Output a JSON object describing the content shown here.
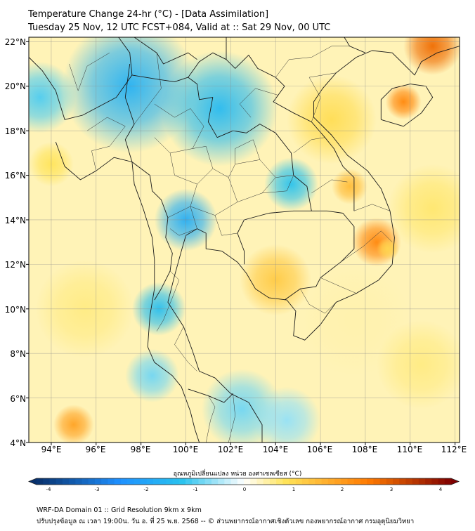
{
  "title": {
    "line1": "Temperature Change 24-hr (°C) - [Data Assimilation]",
    "line2": "Tuesday 25 Nov, 12 UTC FCST+084, Valid at :: Sat 29 Nov, 00 UTC"
  },
  "axes": {
    "lat_labels": [
      "22°N",
      "20°N",
      "18°N",
      "16°N",
      "14°N",
      "12°N",
      "10°N",
      "8°N",
      "6°N",
      "4°N"
    ],
    "lon_labels": [
      "94°E",
      "96°E",
      "98°E",
      "100°E",
      "102°E",
      "104°E",
      "106°E",
      "108°E",
      "110°E",
      "112°E"
    ],
    "lat_range": [
      4,
      22.2
    ],
    "lon_range": [
      93,
      112.2
    ]
  },
  "colorbar": {
    "label": "อุณหภูมิเปลี่ยนแปลง หน่วย องศาเซลเซียส (°C)",
    "min": -4,
    "max": 4,
    "ticks": [
      "-4",
      "-3",
      "-2",
      "-1",
      "0",
      "1",
      "2",
      "3",
      "4"
    ]
  },
  "footer": {
    "line1": "WRF-DA Domain 01 :: Grid Resolution 9km x 9km",
    "line2": "ปรับปรุงข้อมูล ณ เวลา 19:00น. วัน อ. ที่ 25 พ.ย. 2568 -- © ส่วนพยากรณ์อากาศเชิงตัวเลข กองพยากรณ์อากาศ กรมอุตุนิยมวิทยา"
  },
  "colors": {
    "cold_extreme": "#08306b",
    "cold": "#1e90ff",
    "cool": "#29c2ee",
    "neutral": "#ffffff",
    "warm": "#ffe45a",
    "hot": "#ff7a00",
    "hot_extreme": "#7f0000"
  },
  "field": {
    "note": "temperature change anomalies (lon, lat, degC, spread in deg)",
    "anomalies": [
      {
        "lon": 97.5,
        "lat": 20.0,
        "value": -1.6,
        "spread": 3.0
      },
      {
        "lon": 101.5,
        "lat": 19.0,
        "value": -1.4,
        "spread": 2.6
      },
      {
        "lon": 100.0,
        "lat": 14.0,
        "value": -1.7,
        "spread": 1.4
      },
      {
        "lon": 104.7,
        "lat": 15.6,
        "value": -1.2,
        "spread": 1.2
      },
      {
        "lon": 93.5,
        "lat": 19.5,
        "value": -1.0,
        "spread": 1.6
      },
      {
        "lon": 98.8,
        "lat": 10.0,
        "value": -1.3,
        "spread": 1.2
      },
      {
        "lon": 98.5,
        "lat": 7.0,
        "value": -0.8,
        "spread": 1.2
      },
      {
        "lon": 102.5,
        "lat": 5.5,
        "value": -0.8,
        "spread": 1.8
      },
      {
        "lon": 104.5,
        "lat": 5.0,
        "value": -0.6,
        "spread": 1.5
      },
      {
        "lon": 107.5,
        "lat": 9.5,
        "value": 0.4,
        "spread": 2.5
      },
      {
        "lon": 108.5,
        "lat": 13.0,
        "value": 2.2,
        "spread": 1.1
      },
      {
        "lon": 109.0,
        "lat": 12.7,
        "value": 1.0,
        "spread": 0.5
      },
      {
        "lon": 107.3,
        "lat": 15.5,
        "value": 1.4,
        "spread": 0.8
      },
      {
        "lon": 109.7,
        "lat": 19.3,
        "value": 2.2,
        "spread": 0.8
      },
      {
        "lon": 111.0,
        "lat": 21.8,
        "value": 2.6,
        "spread": 1.3
      },
      {
        "lon": 104.0,
        "lat": 11.3,
        "value": 1.2,
        "spread": 1.6
      },
      {
        "lon": 106.5,
        "lat": 18.5,
        "value": 0.9,
        "spread": 2.0
      },
      {
        "lon": 95.0,
        "lat": 4.8,
        "value": 1.8,
        "spread": 0.9
      },
      {
        "lon": 94.0,
        "lat": 16.5,
        "value": 0.8,
        "spread": 1.0
      },
      {
        "lon": 95.5,
        "lat": 10.0,
        "value": 0.6,
        "spread": 2.2
      },
      {
        "lon": 110.5,
        "lat": 7.5,
        "value": 0.6,
        "spread": 2.0
      },
      {
        "lon": 111.0,
        "lat": 14.5,
        "value": 0.7,
        "spread": 2.0
      }
    ],
    "background": 0.35
  },
  "geography": {
    "coastline": [
      [
        [
          97.0,
          22.2
        ],
        [
          97.5,
          21.5
        ],
        [
          97.6,
          20.5
        ],
        [
          96.9,
          19.5
        ],
        [
          95.4,
          18.7
        ],
        [
          94.6,
          18.5
        ],
        [
          94.2,
          19.8
        ],
        [
          93.6,
          20.7
        ],
        [
          93.0,
          21.3
        ]
      ],
      [
        [
          94.2,
          17.5
        ],
        [
          94.6,
          16.4
        ],
        [
          95.3,
          15.8
        ],
        [
          96.0,
          16.2
        ],
        [
          96.8,
          16.8
        ],
        [
          97.6,
          16.6
        ],
        [
          97.7,
          15.6
        ],
        [
          98.1,
          14.5
        ],
        [
          98.5,
          13.2
        ],
        [
          98.6,
          12.2
        ],
        [
          98.6,
          10.9
        ],
        [
          98.4,
          9.7
        ],
        [
          98.3,
          8.3
        ],
        [
          98.6,
          7.6
        ],
        [
          99.4,
          7.0
        ],
        [
          99.8,
          6.5
        ],
        [
          100.2,
          5.4
        ],
        [
          100.4,
          4.6
        ],
        [
          100.6,
          4.0
        ]
      ],
      [
        [
          103.4,
          4.0
        ],
        [
          103.4,
          4.8
        ],
        [
          102.8,
          5.8
        ],
        [
          102.0,
          6.2
        ],
        [
          101.3,
          6.9
        ],
        [
          100.6,
          7.2
        ],
        [
          100.3,
          8.1
        ],
        [
          99.9,
          9.2
        ],
        [
          99.2,
          10.3
        ],
        [
          99.5,
          11.5
        ],
        [
          99.8,
          12.6
        ],
        [
          100.0,
          13.3
        ],
        [
          100.5,
          13.6
        ],
        [
          100.9,
          13.4
        ],
        [
          100.9,
          12.7
        ],
        [
          101.6,
          12.6
        ],
        [
          102.3,
          12.1
        ],
        [
          102.7,
          11.6
        ],
        [
          103.1,
          10.9
        ],
        [
          103.7,
          10.5
        ],
        [
          104.5,
          10.4
        ],
        [
          104.9,
          9.9
        ],
        [
          104.8,
          8.8
        ],
        [
          105.3,
          8.6
        ],
        [
          106.0,
          9.3
        ],
        [
          106.7,
          10.3
        ],
        [
          107.6,
          10.7
        ],
        [
          108.6,
          11.3
        ],
        [
          109.2,
          12.0
        ],
        [
          109.3,
          13.2
        ],
        [
          109.1,
          14.4
        ],
        [
          108.7,
          15.4
        ],
        [
          108.1,
          16.2
        ],
        [
          107.2,
          16.9
        ],
        [
          106.5,
          17.8
        ],
        [
          105.7,
          18.6
        ],
        [
          105.7,
          19.3
        ],
        [
          106.1,
          19.9
        ],
        [
          106.7,
          20.6
        ],
        [
          107.6,
          21.3
        ],
        [
          108.3,
          21.6
        ],
        [
          109.2,
          21.5
        ],
        [
          109.7,
          21.0
        ],
        [
          110.2,
          20.5
        ],
        [
          110.5,
          21.1
        ],
        [
          111.2,
          21.5
        ],
        [
          112.2,
          21.8
        ]
      ],
      [
        [
          108.7,
          18.5
        ],
        [
          108.7,
          19.4
        ],
        [
          109.2,
          19.9
        ],
        [
          110.0,
          20.1
        ],
        [
          110.7,
          20.0
        ],
        [
          111.0,
          19.5
        ],
        [
          110.5,
          18.8
        ],
        [
          109.7,
          18.2
        ],
        [
          108.7,
          18.5
        ]
      ],
      [
        [
          116.0,
          7.0
        ],
        [
          115.0,
          5.0
        ],
        [
          113.2,
          4.0
        ]
      ]
    ],
    "borders": [
      [
        [
          97.6,
          20.5
        ],
        [
          98.8,
          20.3
        ],
        [
          99.5,
          20.2
        ],
        [
          100.1,
          20.4
        ],
        [
          100.5,
          20.1
        ],
        [
          100.6,
          19.4
        ],
        [
          101.2,
          19.5
        ],
        [
          101.0,
          18.4
        ],
        [
          101.4,
          17.7
        ],
        [
          102.1,
          18.0
        ],
        [
          102.7,
          17.9
        ],
        [
          103.3,
          18.3
        ],
        [
          104.0,
          17.9
        ],
        [
          104.7,
          17.0
        ],
        [
          104.8,
          16.0
        ],
        [
          105.4,
          15.5
        ],
        [
          105.6,
          14.4
        ],
        [
          104.8,
          14.4
        ],
        [
          103.7,
          14.3
        ],
        [
          102.6,
          14.0
        ],
        [
          102.3,
          13.4
        ],
        [
          102.6,
          12.6
        ],
        [
          102.6,
          12.0
        ]
      ],
      [
        [
          97.6,
          16.6
        ],
        [
          98.4,
          16.0
        ],
        [
          98.5,
          15.3
        ],
        [
          98.9,
          14.9
        ],
        [
          99.2,
          14.1
        ],
        [
          99.1,
          13.2
        ],
        [
          99.4,
          12.5
        ],
        [
          99.3,
          11.7
        ],
        [
          98.9,
          10.9
        ],
        [
          98.6,
          10.4
        ]
      ],
      [
        [
          100.1,
          6.4
        ],
        [
          101.0,
          6.1
        ],
        [
          101.7,
          5.8
        ],
        [
          102.1,
          6.2
        ]
      ],
      [
        [
          105.6,
          14.4
        ],
        [
          106.3,
          14.4
        ],
        [
          107.0,
          14.3
        ],
        [
          107.5,
          13.7
        ],
        [
          107.5,
          12.7
        ],
        [
          106.9,
          12.1
        ],
        [
          106.0,
          11.4
        ],
        [
          105.8,
          11.0
        ],
        [
          105.1,
          10.9
        ],
        [
          104.4,
          10.4
        ]
      ],
      [
        [
          100.1,
          20.4
        ],
        [
          100.6,
          21.1
        ],
        [
          101.2,
          21.5
        ],
        [
          101.8,
          21.2
        ],
        [
          101.8,
          22.2
        ]
      ],
      [
        [
          101.8,
          21.2
        ],
        [
          102.2,
          20.8
        ],
        [
          102.8,
          21.4
        ],
        [
          103.2,
          20.8
        ],
        [
          104.0,
          20.4
        ],
        [
          104.4,
          20.0
        ],
        [
          103.9,
          19.3
        ],
        [
          104.8,
          18.8
        ],
        [
          105.6,
          18.4
        ],
        [
          106.2,
          17.7
        ],
        [
          106.6,
          17.2
        ],
        [
          107.0,
          16.4
        ],
        [
          107.5,
          15.9
        ],
        [
          107.5,
          15.1
        ],
        [
          107.5,
          14.4
        ]
      ],
      [
        [
          97.7,
          22.2
        ],
        [
          98.7,
          21.5
        ],
        [
          99.0,
          21.0
        ],
        [
          100.1,
          21.5
        ],
        [
          100.5,
          21.2
        ]
      ],
      [
        [
          101.8,
          22.2
        ],
        [
          102.5,
          22.4
        ],
        [
          103.0,
          22.6
        ],
        [
          104.0,
          22.8
        ],
        [
          105.3,
          23.0
        ],
        [
          106.7,
          22.8
        ],
        [
          107.3,
          21.8
        ],
        [
          108.0,
          21.5
        ]
      ],
      [
        [
          97.5,
          21.0
        ],
        [
          97.3,
          19.5
        ],
        [
          97.7,
          18.3
        ],
        [
          97.3,
          17.6
        ],
        [
          97.6,
          16.6
        ]
      ]
    ],
    "provinces": [
      [
        [
          98.6,
          19.2
        ],
        [
          99.5,
          18.6
        ],
        [
          100.2,
          19.0
        ],
        [
          100.8,
          18.2
        ],
        [
          100.3,
          17.2
        ],
        [
          99.3,
          17.0
        ],
        [
          98.6,
          17.7
        ]
      ],
      [
        [
          99.3,
          17.0
        ],
        [
          99.5,
          16.0
        ],
        [
          100.5,
          15.6
        ],
        [
          101.2,
          16.3
        ],
        [
          100.9,
          17.3
        ],
        [
          100.3,
          17.2
        ]
      ],
      [
        [
          100.5,
          15.6
        ],
        [
          100.2,
          14.6
        ],
        [
          101.3,
          14.2
        ],
        [
          102.3,
          14.8
        ],
        [
          101.9,
          15.9
        ],
        [
          101.2,
          16.3
        ]
      ],
      [
        [
          102.3,
          14.8
        ],
        [
          103.4,
          15.2
        ],
        [
          104.0,
          15.9
        ],
        [
          103.3,
          16.7
        ],
        [
          102.2,
          16.5
        ],
        [
          101.9,
          15.9
        ]
      ],
      [
        [
          103.3,
          16.7
        ],
        [
          103.0,
          17.6
        ],
        [
          102.2,
          17.2
        ],
        [
          102.2,
          16.5
        ]
      ],
      [
        [
          104.0,
          15.9
        ],
        [
          104.8,
          16.0
        ],
        [
          104.5,
          15.3
        ],
        [
          103.4,
          15.2
        ]
      ],
      [
        [
          99.2,
          14.1
        ],
        [
          100.2,
          14.6
        ],
        [
          100.5,
          13.6
        ],
        [
          99.7,
          13.3
        ],
        [
          99.3,
          13.6
        ]
      ],
      [
        [
          101.3,
          14.2
        ],
        [
          101.6,
          13.3
        ],
        [
          102.3,
          13.4
        ]
      ],
      [
        [
          99.3,
          11.7
        ],
        [
          99.7,
          11.3
        ],
        [
          99.4,
          10.5
        ],
        [
          99.0,
          9.5
        ],
        [
          98.7,
          9.0
        ]
      ],
      [
        [
          99.9,
          9.2
        ],
        [
          99.5,
          8.4
        ],
        [
          100.1,
          7.6
        ],
        [
          100.5,
          7.2
        ]
      ],
      [
        [
          102.9,
          18.6
        ],
        [
          102.4,
          19.2
        ],
        [
          103.1,
          19.9
        ],
        [
          104.1,
          19.6
        ]
      ],
      [
        [
          104.8,
          17.0
        ],
        [
          105.6,
          17.6
        ],
        [
          106.2,
          17.7
        ]
      ],
      [
        [
          105.6,
          15.2
        ],
        [
          106.5,
          15.8
        ],
        [
          107.2,
          15.7
        ]
      ],
      [
        [
          106.9,
          12.1
        ],
        [
          107.9,
          12.8
        ],
        [
          108.7,
          13.5
        ],
        [
          109.2,
          13.0
        ]
      ],
      [
        [
          107.5,
          14.4
        ],
        [
          108.3,
          14.7
        ],
        [
          109.1,
          14.4
        ]
      ],
      [
        [
          106.0,
          11.4
        ],
        [
          106.9,
          11.0
        ],
        [
          107.6,
          10.7
        ]
      ],
      [
        [
          105.1,
          10.9
        ],
        [
          105.5,
          10.2
        ],
        [
          106.2,
          9.8
        ],
        [
          106.7,
          10.3
        ]
      ],
      [
        [
          105.6,
          18.4
        ],
        [
          106.0,
          19.5
        ],
        [
          105.5,
          20.4
        ],
        [
          106.7,
          20.6
        ]
      ],
      [
        [
          104.0,
          20.4
        ],
        [
          104.6,
          21.2
        ],
        [
          105.6,
          21.3
        ],
        [
          106.5,
          21.8
        ],
        [
          107.3,
          21.8
        ]
      ],
      [
        [
          95.6,
          18.0
        ],
        [
          96.5,
          18.6
        ],
        [
          97.3,
          18.2
        ],
        [
          96.6,
          17.3
        ],
        [
          95.8,
          17.1
        ],
        [
          96.0,
          16.2
        ]
      ],
      [
        [
          96.6,
          21.5
        ],
        [
          95.6,
          20.9
        ],
        [
          95.2,
          19.8
        ],
        [
          94.8,
          21.0
        ]
      ],
      [
        [
          98.7,
          21.5
        ],
        [
          98.9,
          19.9
        ],
        [
          97.7,
          18.3
        ]
      ],
      [
        [
          101.9,
          4.0
        ],
        [
          102.2,
          5.2
        ],
        [
          102.1,
          6.2
        ]
      ],
      [
        [
          100.9,
          4.0
        ],
        [
          101.1,
          5.0
        ],
        [
          101.3,
          5.6
        ],
        [
          101.0,
          6.1
        ]
      ]
    ]
  }
}
